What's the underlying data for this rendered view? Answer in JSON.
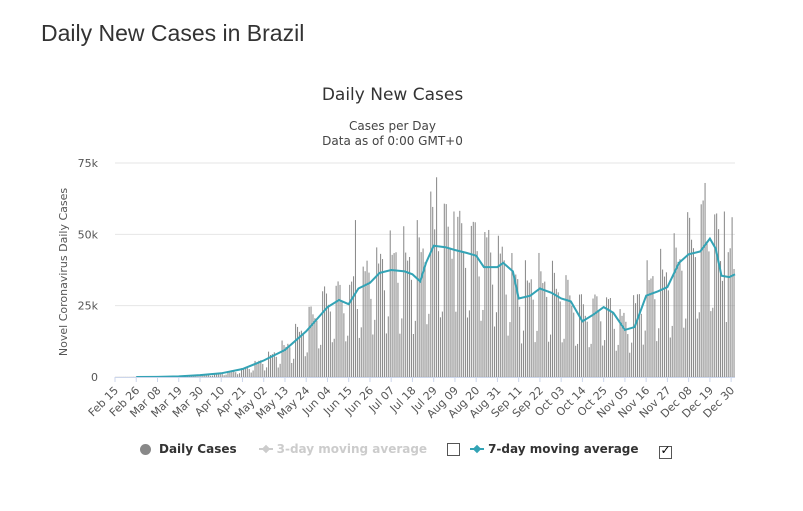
{
  "page": {
    "title": "Daily New Cases in Brazil"
  },
  "legend": {
    "items": [
      {
        "label": "Daily Cases",
        "color": "#888888",
        "active": true
      },
      {
        "label": "3-day moving average",
        "color": "#cccccc",
        "active": false,
        "checked": false
      },
      {
        "label": "7-day moving average",
        "color": "#33a3b5",
        "active": true,
        "checked": true
      }
    ]
  },
  "chart_data": {
    "type": "bar",
    "title": "Daily New Cases",
    "subtitle": [
      "Cases per Day",
      "Data as of 0:00 GMT+0"
    ],
    "ylabel": "Novel Coronavirus Daily Cases",
    "ylim": [
      0,
      75000
    ],
    "yticks": [
      0,
      25000,
      50000,
      75000
    ],
    "ytick_labels": [
      "0",
      "25k",
      "50k",
      "75k"
    ],
    "x_start": "2020-02-15",
    "x_end": "2021-01-01",
    "xtick_labels": [
      "Feb 15",
      "Feb 26",
      "Mar 08",
      "Mar 19",
      "Mar 30",
      "Apr 10",
      "Apr 21",
      "May 02",
      "May 13",
      "May 24",
      "Jun 04",
      "Jun 15",
      "Jun 26",
      "Jul 07",
      "Jul 18",
      "Jul 29",
      "Aug 09",
      "Aug 20",
      "Aug 31",
      "Sep 11",
      "Sep 22",
      "Oct 03",
      "Oct 14",
      "Oct 25",
      "Nov 05",
      "Nov 16",
      "Nov 27",
      "Dec 08",
      "Dec 19",
      "Dec 30"
    ],
    "grid": true,
    "legend_position": "bottom",
    "series": [
      {
        "name": "Daily Cases",
        "color": "#888888",
        "anchors": [
          [
            "2020-02-15",
            0
          ],
          [
            "2020-03-08",
            50
          ],
          [
            "2020-03-19",
            200
          ],
          [
            "2020-03-30",
            600
          ],
          [
            "2020-04-10",
            1200
          ],
          [
            "2020-04-21",
            2500
          ],
          [
            "2020-05-02",
            5500
          ],
          [
            "2020-05-13",
            9500
          ],
          [
            "2020-05-24",
            17000
          ],
          [
            "2020-06-04",
            25000
          ],
          [
            "2020-06-15",
            26000
          ],
          [
            "2020-06-26",
            33000
          ],
          [
            "2020-07-07",
            37000
          ],
          [
            "2020-07-18",
            36000
          ],
          [
            "2020-07-29",
            46000
          ],
          [
            "2020-08-09",
            44000
          ],
          [
            "2020-08-20",
            42000
          ],
          [
            "2020-08-31",
            38000
          ],
          [
            "2020-09-11",
            28000
          ],
          [
            "2020-09-22",
            30000
          ],
          [
            "2020-10-03",
            27000
          ],
          [
            "2020-10-14",
            21000
          ],
          [
            "2020-10-25",
            23000
          ],
          [
            "2020-11-05",
            17000
          ],
          [
            "2020-11-16",
            29000
          ],
          [
            "2020-11-27",
            32000
          ],
          [
            "2020-12-08",
            42000
          ],
          [
            "2020-12-19",
            48000
          ],
          [
            "2020-12-27",
            35000
          ],
          [
            "2021-01-01",
            36000
          ]
        ],
        "peaks": [
          [
            "2020-06-18",
            55000
          ],
          [
            "2020-07-27",
            65000
          ],
          [
            "2020-07-30",
            70000
          ],
          [
            "2020-08-08",
            58000
          ],
          [
            "2020-12-16",
            68000
          ],
          [
            "2020-12-26",
            58000
          ],
          [
            "2020-12-30",
            56000
          ]
        ]
      },
      {
        "name": "7-day moving average",
        "color": "#33a3b5",
        "values": [
          [
            "2020-02-26",
            0
          ],
          [
            "2020-03-08",
            50
          ],
          [
            "2020-03-19",
            200
          ],
          [
            "2020-03-30",
            650
          ],
          [
            "2020-04-10",
            1300
          ],
          [
            "2020-04-21",
            2800
          ],
          [
            "2020-05-02",
            5800
          ],
          [
            "2020-05-13",
            9500
          ],
          [
            "2020-05-24",
            16000
          ],
          [
            "2020-06-04",
            24500
          ],
          [
            "2020-06-10",
            27000
          ],
          [
            "2020-06-15",
            25500
          ],
          [
            "2020-06-20",
            31000
          ],
          [
            "2020-06-26",
            33000
          ],
          [
            "2020-07-01",
            36500
          ],
          [
            "2020-07-07",
            37500
          ],
          [
            "2020-07-14",
            37000
          ],
          [
            "2020-07-18",
            36000
          ],
          [
            "2020-07-22",
            33500
          ],
          [
            "2020-07-25",
            40000
          ],
          [
            "2020-07-29",
            46000
          ],
          [
            "2020-08-04",
            45500
          ],
          [
            "2020-08-09",
            44500
          ],
          [
            "2020-08-15",
            43500
          ],
          [
            "2020-08-20",
            42500
          ],
          [
            "2020-08-24",
            38500
          ],
          [
            "2020-08-31",
            38500
          ],
          [
            "2020-09-03",
            40000
          ],
          [
            "2020-09-08",
            37000
          ],
          [
            "2020-09-11",
            27500
          ],
          [
            "2020-09-17",
            28500
          ],
          [
            "2020-09-22",
            31000
          ],
          [
            "2020-09-28",
            29500
          ],
          [
            "2020-10-03",
            27500
          ],
          [
            "2020-10-08",
            26500
          ],
          [
            "2020-10-14",
            19500
          ],
          [
            "2020-10-20",
            22000
          ],
          [
            "2020-10-25",
            24500
          ],
          [
            "2020-10-30",
            22500
          ],
          [
            "2020-11-05",
            16500
          ],
          [
            "2020-11-10",
            17500
          ],
          [
            "2020-11-16",
            28500
          ],
          [
            "2020-11-22",
            30000
          ],
          [
            "2020-11-27",
            31500
          ],
          [
            "2020-12-03",
            40000
          ],
          [
            "2020-12-08",
            43000
          ],
          [
            "2020-12-14",
            44000
          ],
          [
            "2020-12-19",
            48500
          ],
          [
            "2020-12-22",
            45000
          ],
          [
            "2020-12-25",
            35500
          ],
          [
            "2020-12-29",
            35000
          ],
          [
            "2021-01-01",
            36000
          ]
        ]
      }
    ]
  }
}
